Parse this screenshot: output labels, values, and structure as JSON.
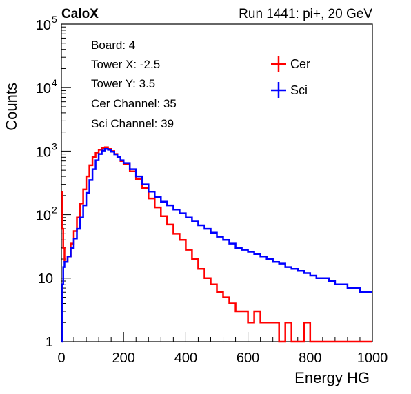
{
  "header": {
    "left": "CaloX",
    "right": "Run 1441: pi+, 20 GeV"
  },
  "info": {
    "lines": [
      "Board: 4",
      "Tower X: -2.5",
      "Tower Y: 3.5",
      "Cer Channel: 35",
      "Sci Channel: 39"
    ]
  },
  "chart_data": {
    "type": "line",
    "xlabel": "Energy HG",
    "ylabel": "Counts",
    "xlim": [
      0,
      1000
    ],
    "ylim": [
      1,
      100000
    ],
    "log_y": true,
    "x_ticks": [
      "0",
      "200",
      "400",
      "600",
      "800",
      "1000"
    ],
    "y_ticks": [
      {
        "base": "1",
        "exp": ""
      },
      {
        "base": "10",
        "exp": ""
      },
      {
        "base": "10",
        "exp": "2"
      },
      {
        "base": "10",
        "exp": "3"
      },
      {
        "base": "10",
        "exp": "4"
      },
      {
        "base": "10",
        "exp": "5"
      }
    ],
    "grid": false,
    "legend_position": "top-right",
    "series": [
      {
        "name": "Cer",
        "color": "#ff0000",
        "x": [
          1,
          3,
          6,
          10,
          20,
          30,
          40,
          50,
          60,
          70,
          80,
          90,
          100,
          110,
          120,
          130,
          140,
          150,
          160,
          170,
          180,
          190,
          200,
          220,
          240,
          260,
          280,
          300,
          320,
          340,
          360,
          380,
          400,
          420,
          440,
          460,
          480,
          500,
          520,
          540,
          560,
          580,
          600,
          620,
          640,
          660,
          680,
          700,
          720,
          740,
          760,
          780,
          800,
          820,
          840,
          860,
          880,
          900,
          950,
          1000
        ],
        "y": [
          230,
          60,
          30,
          18,
          22,
          35,
          55,
          90,
          150,
          250,
          400,
          600,
          800,
          950,
          1050,
          1120,
          1150,
          1080,
          1000,
          900,
          800,
          700,
          620,
          480,
          360,
          260,
          180,
          130,
          95,
          70,
          50,
          40,
          28,
          20,
          14,
          10,
          8,
          6,
          5,
          4,
          3,
          3,
          2,
          3,
          2,
          2,
          2,
          1,
          2,
          1,
          1,
          2,
          1,
          1,
          1,
          1,
          1,
          1,
          1,
          1
        ]
      },
      {
        "name": "Sci",
        "color": "#0000ff",
        "x": [
          1,
          3,
          6,
          10,
          20,
          30,
          40,
          50,
          60,
          70,
          80,
          90,
          100,
          110,
          120,
          130,
          140,
          150,
          160,
          170,
          180,
          190,
          200,
          220,
          240,
          260,
          280,
          300,
          320,
          340,
          360,
          380,
          400,
          420,
          440,
          460,
          480,
          500,
          520,
          540,
          560,
          580,
          600,
          620,
          640,
          660,
          680,
          700,
          720,
          740,
          760,
          780,
          800,
          820,
          840,
          860,
          880,
          900,
          920,
          940,
          960,
          980,
          1000
        ],
        "y": [
          1,
          8,
          15,
          18,
          22,
          30,
          42,
          60,
          90,
          140,
          220,
          350,
          520,
          720,
          900,
          1020,
          1080,
          1050,
          980,
          890,
          800,
          720,
          650,
          520,
          400,
          300,
          230,
          190,
          160,
          140,
          120,
          105,
          90,
          78,
          68,
          60,
          52,
          45,
          40,
          35,
          30,
          28,
          26,
          24,
          22,
          20,
          18,
          17,
          15,
          14,
          13,
          12,
          11,
          10,
          10,
          9,
          8,
          8,
          7,
          7,
          6,
          6,
          6
        ]
      }
    ]
  }
}
